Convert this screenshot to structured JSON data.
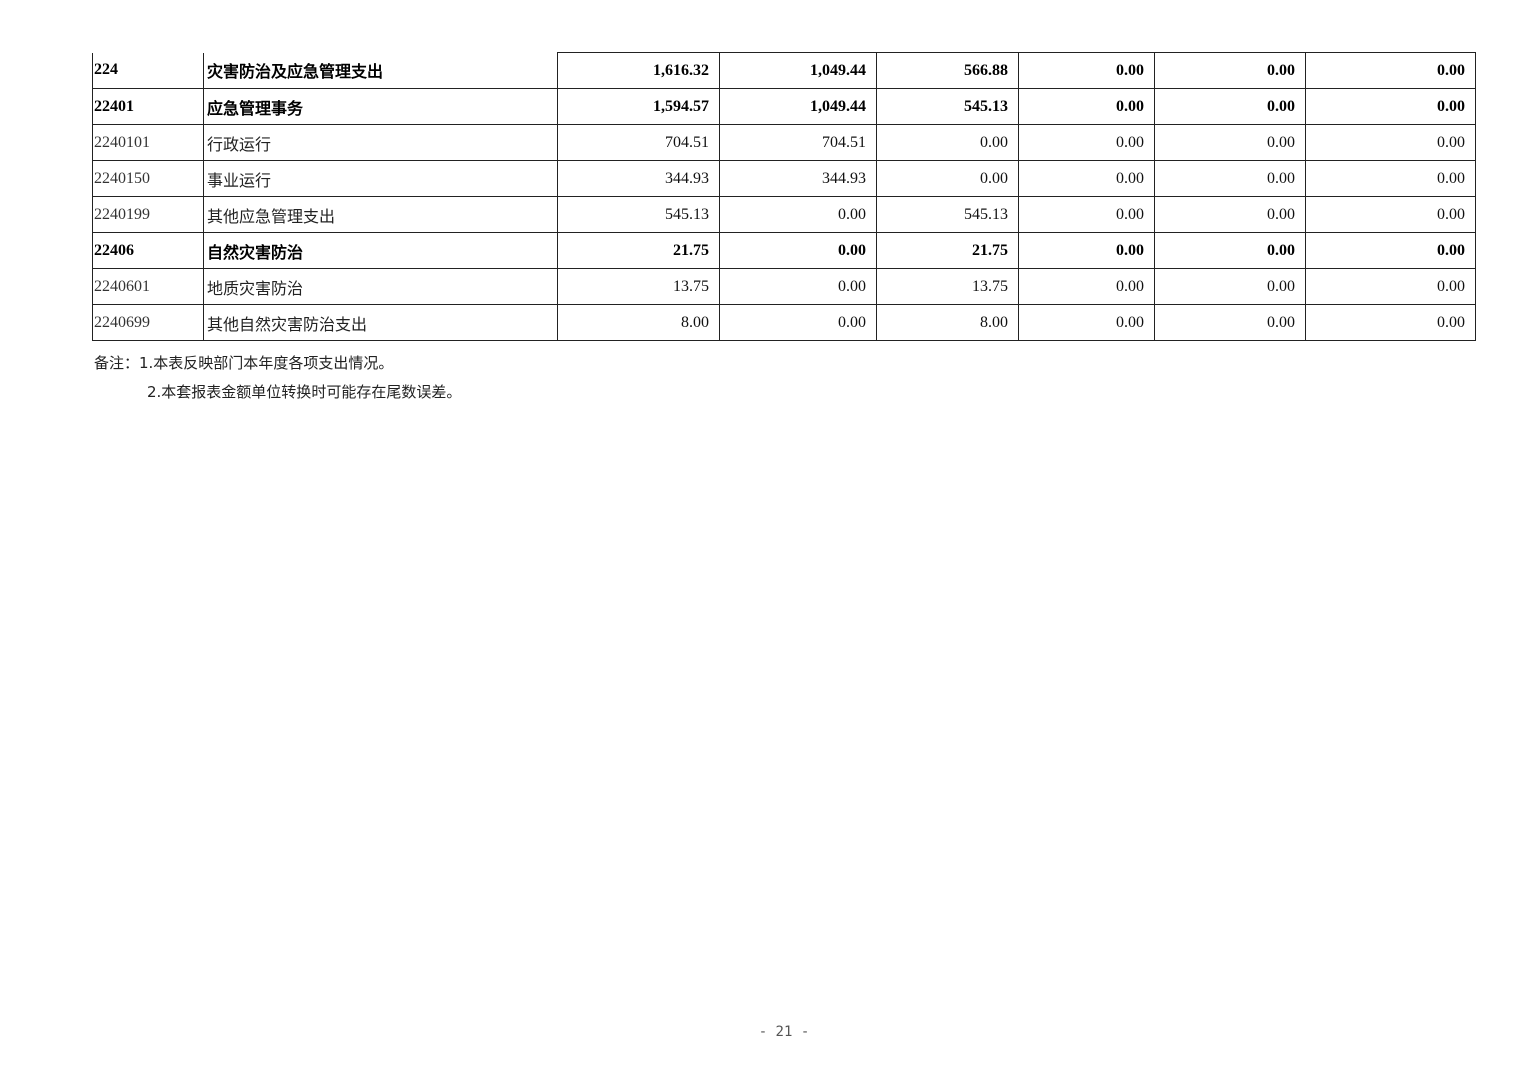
{
  "rows": [
    {
      "code": "224",
      "name": "灾害防治及应急管理支出",
      "v": [
        "1,616.32",
        "1,049.44",
        "566.88",
        "0.00",
        "0.00",
        "0.00"
      ],
      "bold": true
    },
    {
      "code": "22401",
      "name": "应急管理事务",
      "v": [
        "1,594.57",
        "1,049.44",
        "545.13",
        "0.00",
        "0.00",
        "0.00"
      ],
      "bold": true
    },
    {
      "code": "2240101",
      "name": "行政运行",
      "v": [
        "704.51",
        "704.51",
        "0.00",
        "0.00",
        "0.00",
        "0.00"
      ],
      "bold": false
    },
    {
      "code": "2240150",
      "name": "事业运行",
      "v": [
        "344.93",
        "344.93",
        "0.00",
        "0.00",
        "0.00",
        "0.00"
      ],
      "bold": false
    },
    {
      "code": "2240199",
      "name": "其他应急管理支出",
      "v": [
        "545.13",
        "0.00",
        "545.13",
        "0.00",
        "0.00",
        "0.00"
      ],
      "bold": false
    },
    {
      "code": "22406",
      "name": "自然灾害防治",
      "v": [
        "21.75",
        "0.00",
        "21.75",
        "0.00",
        "0.00",
        "0.00"
      ],
      "bold": true
    },
    {
      "code": "2240601",
      "name": "地质灾害防治",
      "v": [
        "13.75",
        "0.00",
        "13.75",
        "0.00",
        "0.00",
        "0.00"
      ],
      "bold": false
    },
    {
      "code": "2240699",
      "name": "其他自然灾害防治支出",
      "v": [
        "8.00",
        "0.00",
        "8.00",
        "0.00",
        "0.00",
        "0.00"
      ],
      "bold": false
    }
  ],
  "notes": {
    "line1": "备注：1.本表反映部门本年度各项支出情况。",
    "line2": "2.本套报表金额单位转换时可能存在尾数误差。"
  },
  "page_number": "- 21 -"
}
